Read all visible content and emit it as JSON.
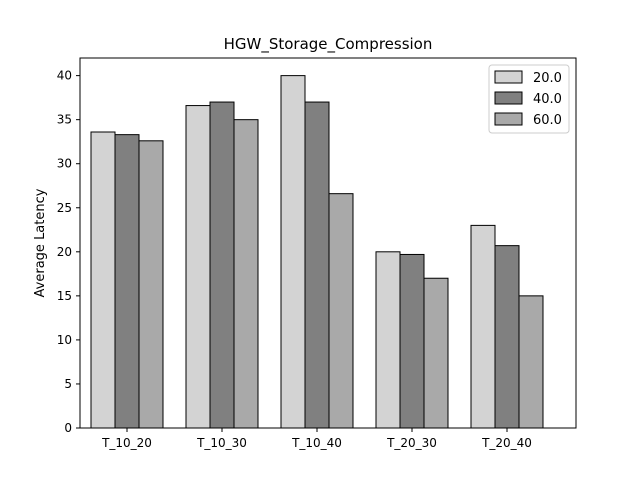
{
  "chart_data": {
    "type": "bar",
    "title": "HGW_Storage_Compression",
    "xlabel": "",
    "ylabel": "Average Latency",
    "categories": [
      "T_10_20",
      "T_10_30",
      "T_10_40",
      "T_20_30",
      "T_20_40"
    ],
    "series": [
      {
        "name": "20.0",
        "color": "#d3d3d3",
        "values": [
          33.6,
          36.6,
          40.0,
          20.0,
          23.0
        ]
      },
      {
        "name": "40.0",
        "color": "#808080",
        "values": [
          33.3,
          37.0,
          37.0,
          19.7,
          20.7
        ]
      },
      {
        "name": "60.0",
        "color": "#a9a9a9",
        "values": [
          32.6,
          35.0,
          26.6,
          17.0,
          15.0
        ]
      }
    ],
    "ylim": [
      0,
      42
    ],
    "yticks": [
      0,
      5,
      10,
      15,
      20,
      25,
      30,
      35,
      40
    ],
    "grid": false,
    "legend": "top-right"
  }
}
